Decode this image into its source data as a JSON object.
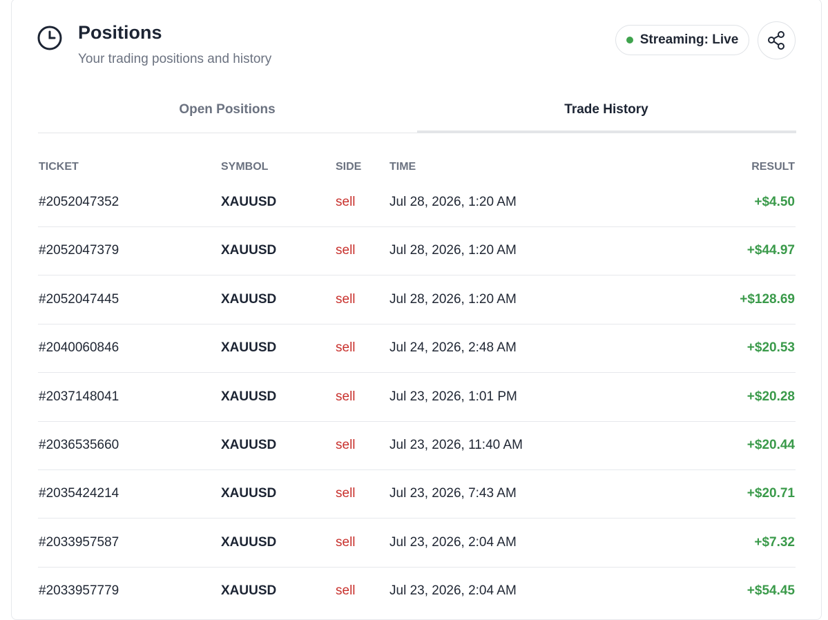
{
  "header": {
    "title": "Positions",
    "subtitle": "Your trading positions and history"
  },
  "status": "Streaming: Live",
  "tabs": [
    "Open Positions",
    "Trade History"
  ],
  "active_tab": 1,
  "table": {
    "columns": [
      "TICKET",
      "SYMBOL",
      "SIDE",
      "TIME",
      "RESULT"
    ],
    "rows": [
      [
        "#2052047352",
        "XAUUSD",
        "sell",
        "Jul 28, 2026, 1:20 AM",
        "+$4.50"
      ],
      [
        "#2052047379",
        "XAUUSD",
        "sell",
        "Jul 28, 2026, 1:20 AM",
        "+$44.97"
      ],
      [
        "#2052047445",
        "XAUUSD",
        "sell",
        "Jul 28, 2026, 1:20 AM",
        "+$128.69"
      ],
      [
        "#2040060846",
        "XAUUSD",
        "sell",
        "Jul 24, 2026, 2:48 AM",
        "+$20.53"
      ],
      [
        "#2037148041",
        "XAUUSD",
        "sell",
        "Jul 23, 2026, 1:01 PM",
        "+$20.28"
      ],
      [
        "#2036535660",
        "XAUUSD",
        "sell",
        "Jul 23, 2026, 11:40 AM",
        "+$20.44"
      ],
      [
        "#2035424214",
        "XAUUSD",
        "sell",
        "Jul 23, 2026, 7:43 AM",
        "+$20.71"
      ],
      [
        "#2033957587",
        "XAUUSD",
        "sell",
        "Jul 23, 2026, 2:04 AM",
        "+$7.32"
      ],
      [
        "#2033957779",
        "XAUUSD",
        "sell",
        "Jul 23, 2026, 2:04 AM",
        "+$54.45"
      ]
    ]
  }
}
